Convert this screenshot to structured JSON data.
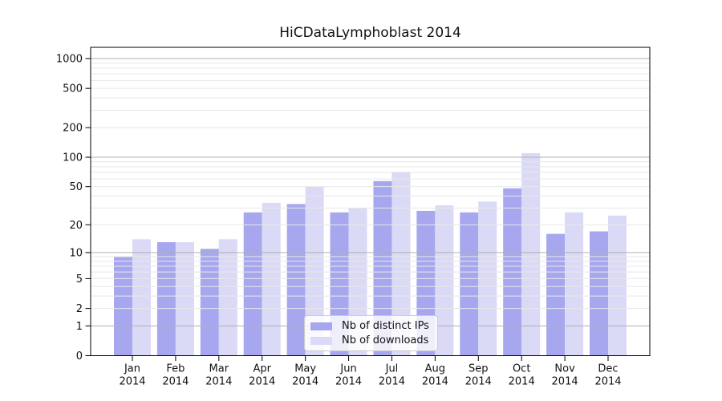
{
  "chart_data": {
    "type": "bar",
    "title": "HiCDataLymphoblast 2014",
    "categories": [
      "Jan",
      "Feb",
      "Mar",
      "Apr",
      "May",
      "Jun",
      "Jul",
      "Aug",
      "Sep",
      "Oct",
      "Nov",
      "Dec"
    ],
    "x_year_label": "2014",
    "series": [
      {
        "name": "Nb of distinct IPs",
        "color_key": "ips",
        "values": [
          9,
          13,
          11,
          27,
          33,
          27,
          57,
          28,
          27,
          48,
          16,
          17
        ]
      },
      {
        "name": "Nb of downloads",
        "color_key": "downloads",
        "values": [
          14,
          13,
          14,
          34,
          50,
          30,
          71,
          32,
          35,
          110,
          27,
          25
        ]
      }
    ],
    "y_axis": {
      "scale": "log10(1+v)",
      "labeled_ticks": [
        0,
        1,
        2,
        5,
        10,
        20,
        50,
        100,
        200,
        500,
        1000
      ],
      "strong_gridlines": [
        1,
        10,
        100,
        1000
      ],
      "minor_gridlines": [
        2,
        3,
        4,
        5,
        6,
        7,
        8,
        9,
        20,
        30,
        40,
        50,
        60,
        70,
        80,
        90,
        200,
        300,
        400,
        500,
        600,
        700,
        800,
        900
      ],
      "ylim": [
        0,
        1300
      ]
    },
    "legend": {
      "entries": [
        "Nb of distinct IPs",
        "Nb of downloads"
      ],
      "position": "bottom-center"
    },
    "grid": true
  },
  "colors": {
    "ips": "#a7a7ef",
    "downloads": "#dadaf7",
    "grid_major": "#b0b0b0",
    "grid_minor": "#e8e8e8",
    "frame": "#000000",
    "text": "#111111"
  }
}
